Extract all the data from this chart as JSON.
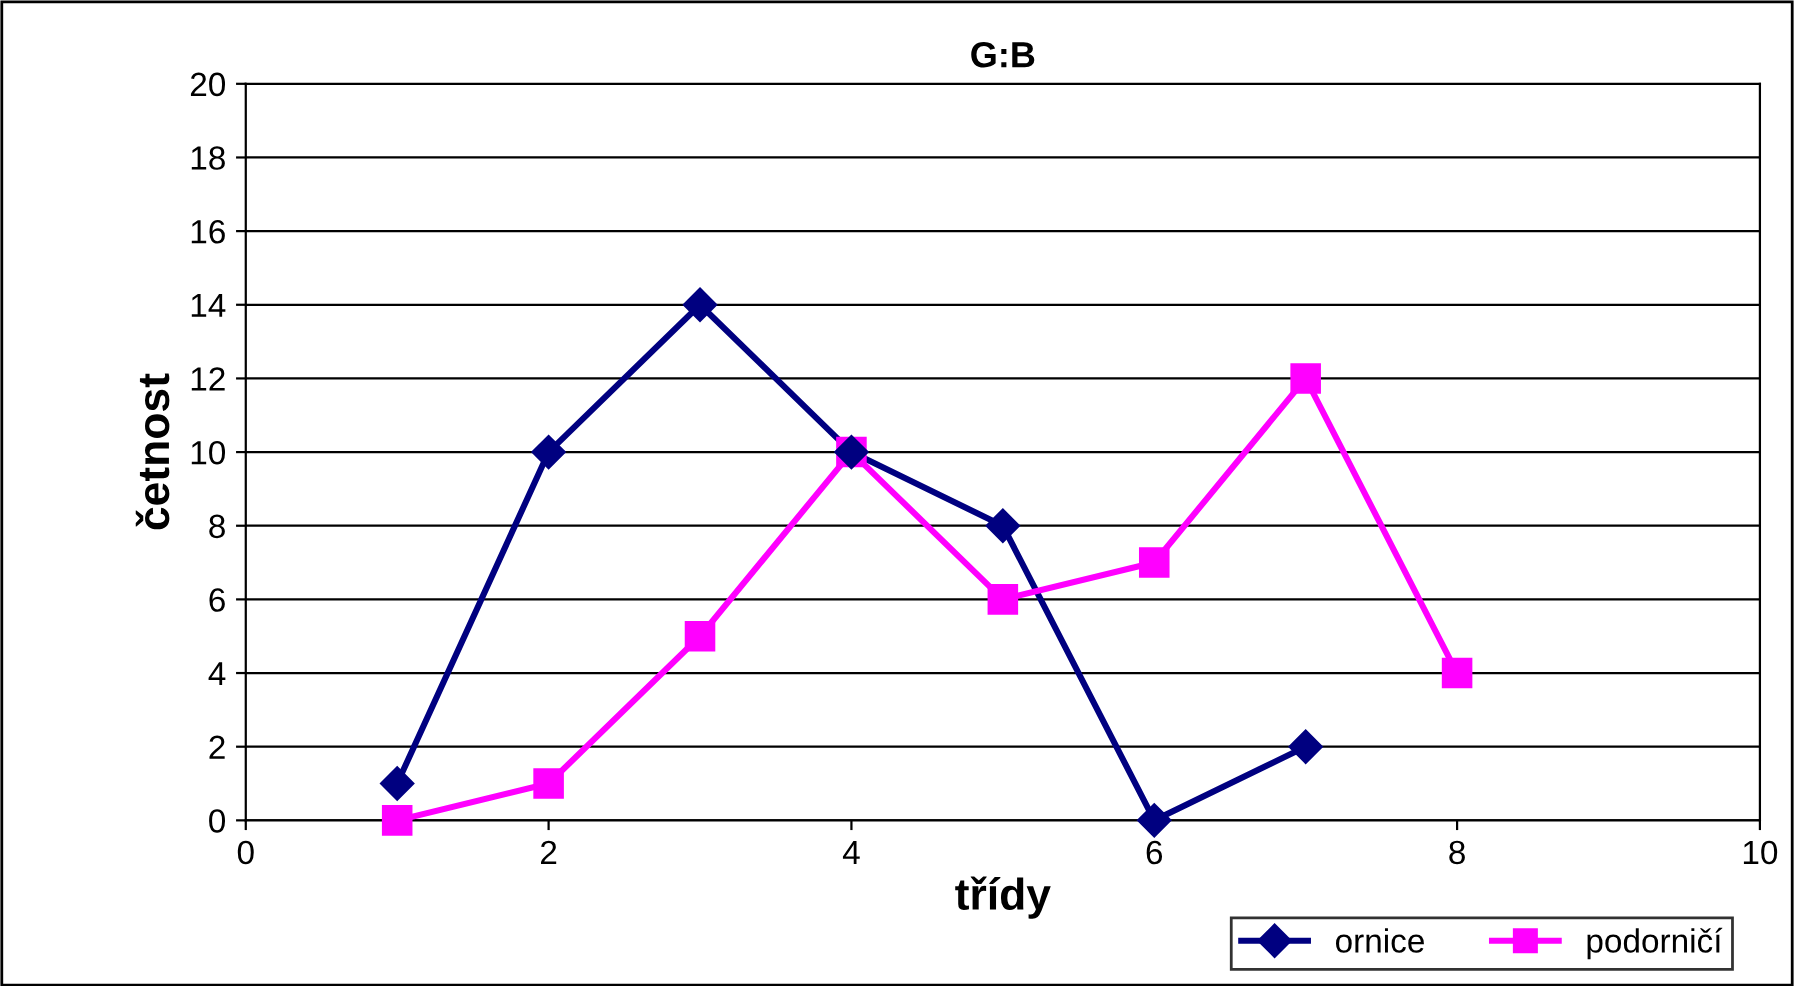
{
  "chart_data": {
    "type": "line",
    "title": "G:B",
    "xlabel": "třídy",
    "ylabel": "četnost",
    "xlim": [
      0,
      10
    ],
    "xticks": [
      0,
      2,
      4,
      6,
      8,
      10
    ],
    "ylim": [
      0,
      20
    ],
    "yticks": [
      0,
      2,
      4,
      6,
      8,
      10,
      12,
      14,
      16,
      18,
      20
    ],
    "grid": "y",
    "legend": "bottom right",
    "line_style": "solid",
    "series": [
      {
        "name": "ornice",
        "color": "#000080",
        "marker": "diamond",
        "x": [
          1,
          2,
          3,
          4,
          5,
          6,
          7
        ],
        "values": [
          1,
          10,
          14,
          10,
          8,
          0,
          2
        ]
      },
      {
        "name": "podorničí",
        "color": "#ff00ff",
        "marker": "square",
        "x": [
          1,
          2,
          3,
          4,
          5,
          6,
          7,
          8
        ],
        "values": [
          0,
          1,
          5,
          10,
          6,
          7,
          12,
          4
        ]
      }
    ]
  }
}
